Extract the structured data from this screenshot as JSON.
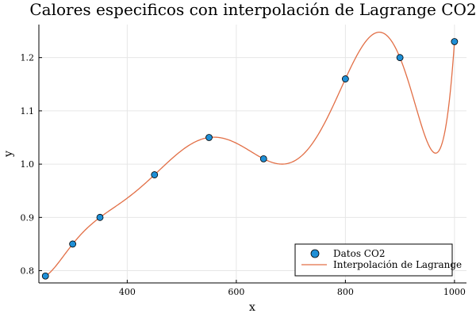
{
  "chart_data": {
    "type": "scatter",
    "title": "Calores especificos con interpolación de Lagrange CO2",
    "xlabel": "x",
    "ylabel": "y",
    "xlim": [
      238,
      1022
    ],
    "ylim": [
      0.777,
      1.262
    ],
    "xticks": [
      400,
      600,
      800,
      1000
    ],
    "yticks": [
      0.8,
      0.9,
      1.0,
      1.1,
      1.2
    ],
    "xtick_labels": [
      "400",
      "600",
      "800",
      "1000"
    ],
    "ytick_labels": [
      "0.8",
      "0.9",
      "1.0",
      "1.1",
      "1.2"
    ],
    "grid": true,
    "legend_position": "bottom-right",
    "series": [
      {
        "name": "Datos CO2",
        "kind": "scatter",
        "color": "#1f8fd6",
        "x": [
          250,
          300,
          350,
          450,
          550,
          650,
          800,
          900,
          1000
        ],
        "y": [
          0.79,
          0.85,
          0.9,
          0.98,
          1.05,
          1.01,
          1.16,
          1.2,
          1.23
        ]
      },
      {
        "name": "Interpolación de Lagrange",
        "kind": "line",
        "color": "#e26f46"
      }
    ]
  }
}
